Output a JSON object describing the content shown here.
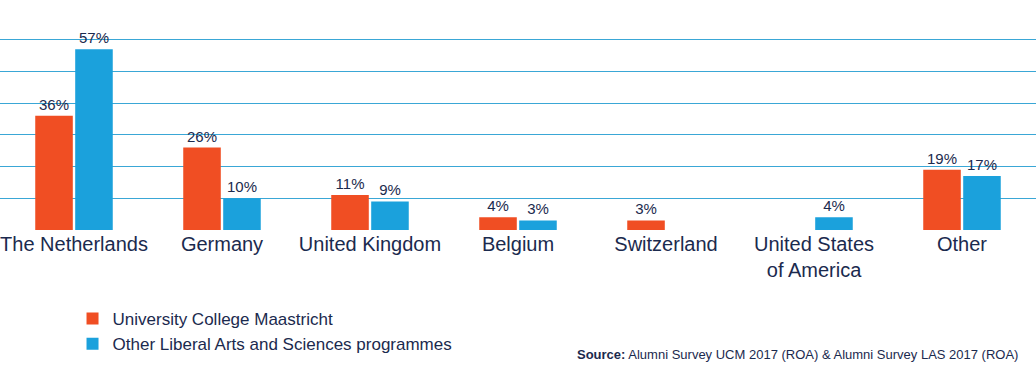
{
  "chart_data": {
    "type": "bar",
    "categories": [
      "The Netherlands",
      "Germany",
      "United Kingdom",
      "Belgium",
      "Switzerland",
      "United States of America",
      "Other"
    ],
    "series": [
      {
        "name": "University College Maastricht",
        "color": "#f04e23",
        "values": [
          36,
          26,
          11,
          4,
          3,
          null,
          19
        ],
        "value_labels": [
          "36%",
          "26%",
          "11%",
          "4%",
          "3%",
          null,
          "19%"
        ]
      },
      {
        "name": "Other Liberal Arts and Sciences programmes",
        "color": "#1ba1dc",
        "values": [
          57,
          10,
          9,
          3,
          null,
          4,
          17
        ],
        "value_labels": [
          "57%",
          "10%",
          "9%",
          "3%",
          null,
          "4%",
          "17%"
        ]
      }
    ],
    "ylim": [
      0,
      70
    ],
    "yticks": [
      0,
      10,
      20,
      30,
      40,
      50,
      60,
      70
    ],
    "grid": true,
    "tick_labels": "x",
    "data_labels": true,
    "legend": "bottom left",
    "source": {
      "label": "Source:",
      "text": "Alumni Survey UCM 2017 (ROA) & Alumni Survey LAS 2017 (ROA)"
    }
  }
}
